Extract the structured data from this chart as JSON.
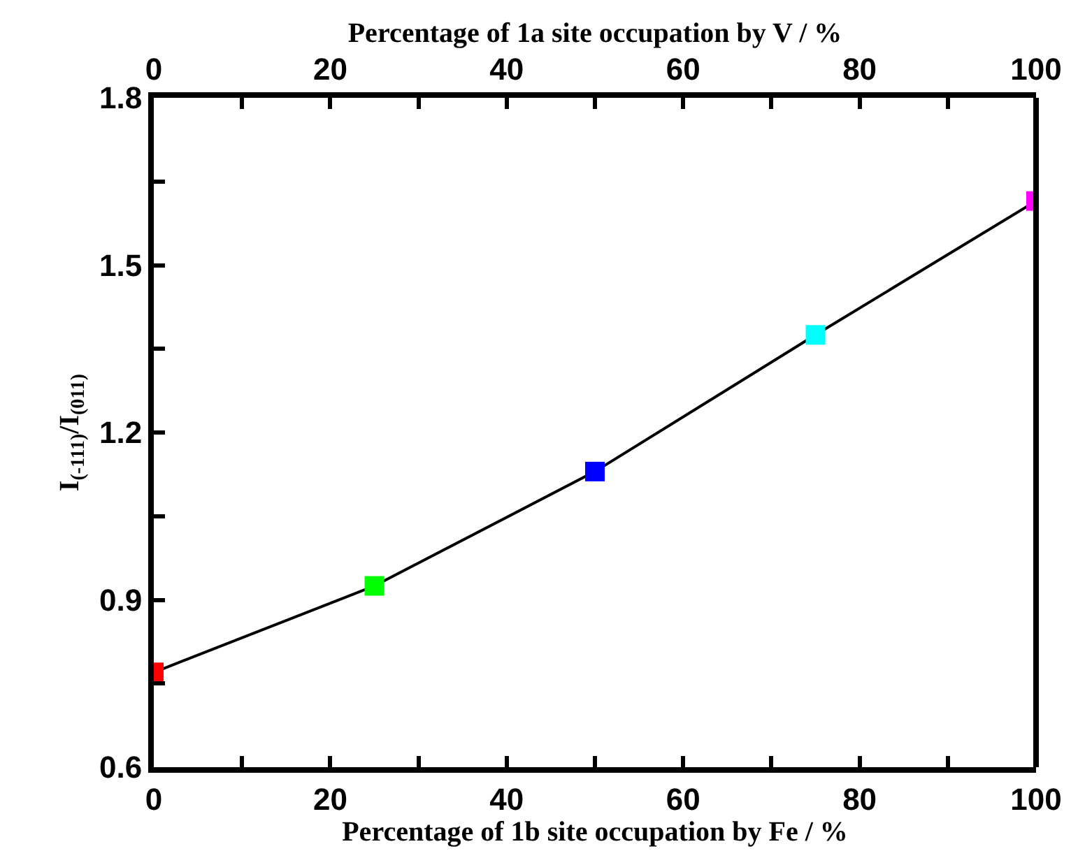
{
  "chart_data": {
    "type": "line",
    "x": [
      0,
      25,
      50,
      75,
      100
    ],
    "series": [
      {
        "color": "#000000",
        "colors": [
          "#ff0000",
          "#00ff00",
          "#0000ff",
          "#00ffff",
          "#ff00ff"
        ],
        "values": [
          0.77,
          0.925,
          1.13,
          1.375,
          1.615
        ]
      }
    ],
    "xlabel": "Percentage of 1b site occupation by Fe / %",
    "x2label": "Percentage of 1a site occupation by V / %",
    "ylabel": "I$_{(-111)}$/I$_{(011)}$",
    "xlim": [
      0,
      100
    ],
    "x2lim": [
      0,
      100
    ],
    "ylim": [
      0.6,
      1.8
    ],
    "xticks": [
      0,
      {
        "value": 10,
        "label": null
      },
      20,
      {
        "value": 30,
        "label": null
      },
      40,
      {
        "value": 50,
        "label": null
      },
      60,
      {
        "value": 70,
        "label": null
      },
      80,
      {
        "value": 90,
        "label": null
      },
      100
    ],
    "x2ticks": [
      0,
      {
        "value": 10,
        "label": null
      },
      20,
      {
        "value": 30,
        "label": null
      },
      40,
      {
        "value": 50,
        "label": null
      },
      60,
      {
        "value": 70,
        "label": null
      },
      80,
      {
        "value": 90,
        "label": null
      },
      100
    ],
    "yticks": [
      0.6,
      {
        "value": 0.75,
        "label": null
      },
      0.9,
      {
        "value": 1.05,
        "label": null
      },
      1.2,
      {
        "value": 1.35,
        "label": null
      },
      1.5,
      {
        "value": 1.65,
        "label": null
      },
      1.8
    ],
    "marker": "square",
    "line_style": "solid"
  }
}
